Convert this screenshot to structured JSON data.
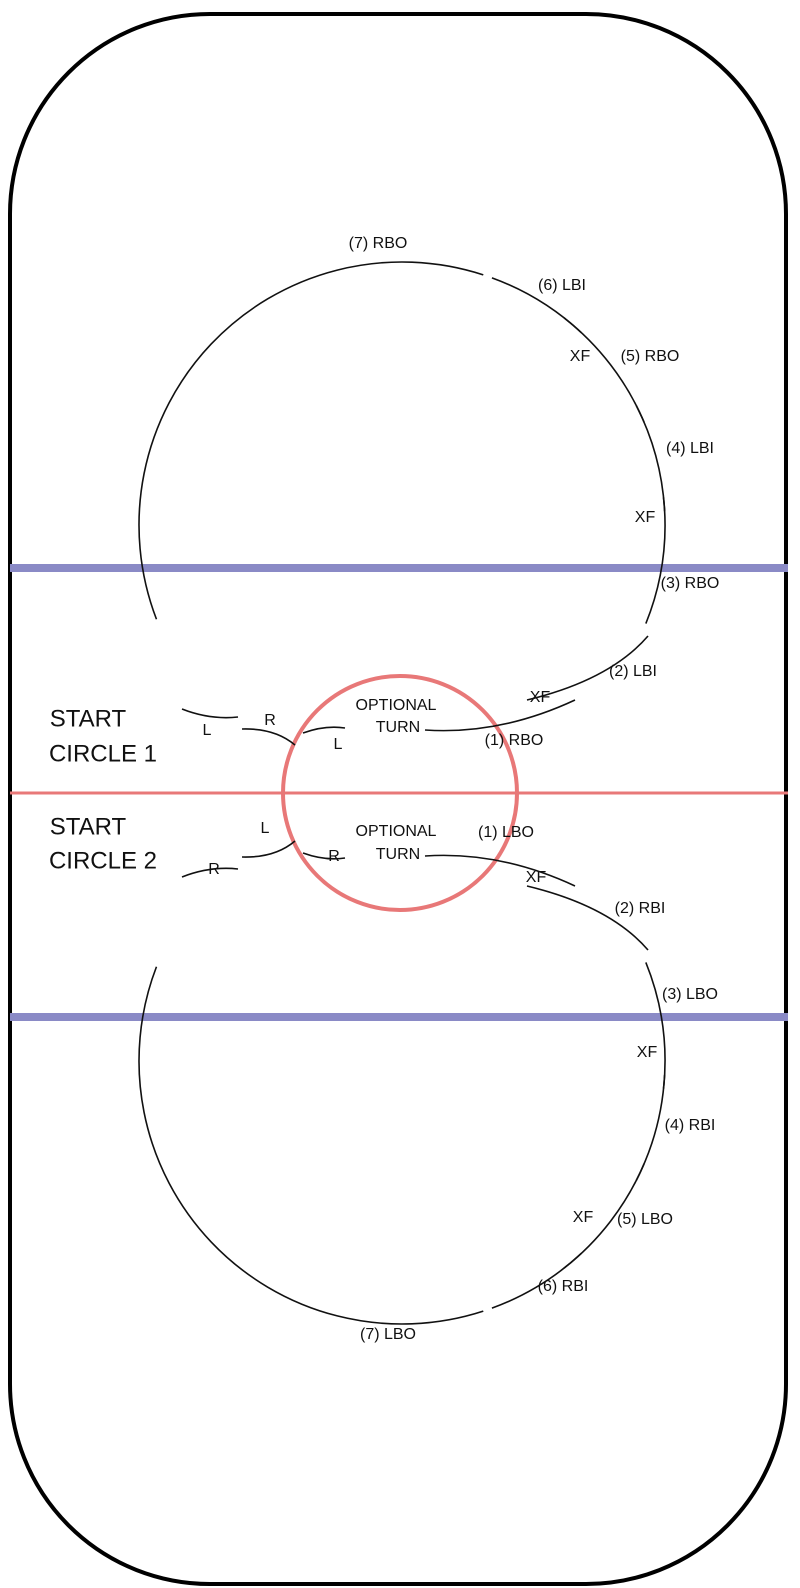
{
  "circle_1": {
    "start": [
      "START",
      "CIRCLE 1"
    ],
    "turn": [
      "OPTIONAL",
      "TURN"
    ],
    "labels": [
      "(7) RBO",
      "(6) LBI",
      "XF",
      "(5) RBO",
      "(4) LBI",
      "XF",
      "(3) RBO",
      "(2) LBI",
      "XF",
      "(1) RBO",
      "L",
      "R",
      "L"
    ]
  },
  "circle_2": {
    "start": [
      "START",
      "CIRCLE 2"
    ],
    "turn": [
      "OPTIONAL",
      "TURN"
    ],
    "labels": [
      "(1) LBO",
      "XF",
      "(2) RBI",
      "(3) LBO",
      "XF",
      "(4) RBI",
      "XF",
      "(5) LBO",
      "(6) RBI",
      "(7) LBO",
      "L",
      "R",
      "R"
    ]
  }
}
